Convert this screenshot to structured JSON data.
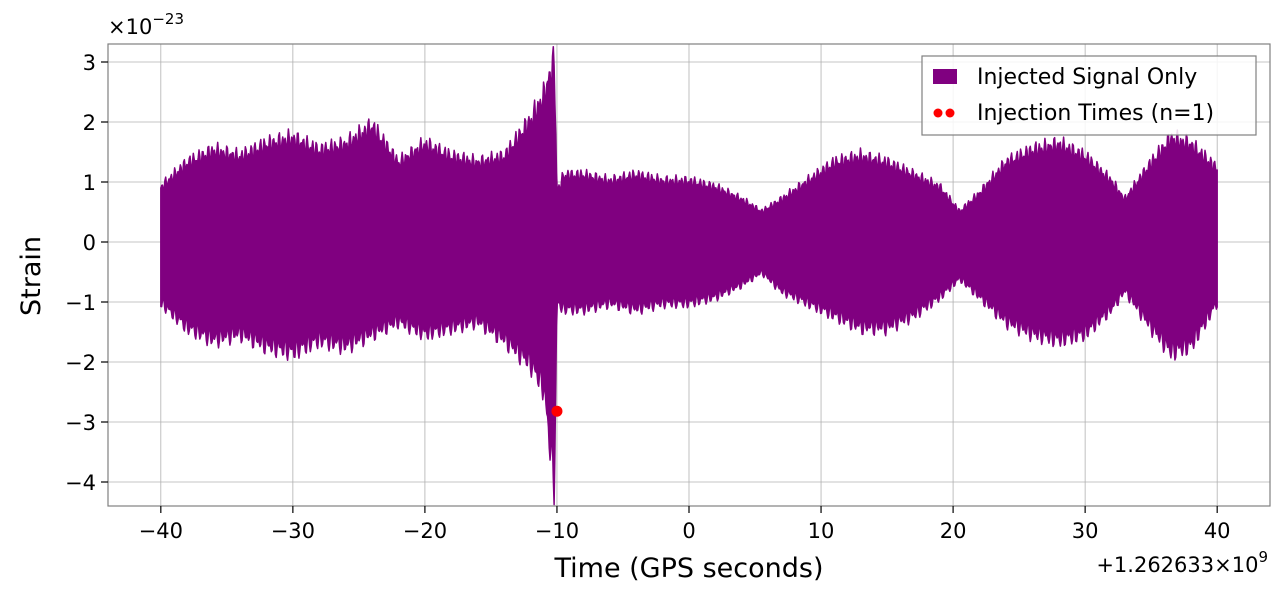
{
  "chart_data": {
    "type": "line",
    "xlabel": "Time (GPS seconds)",
    "ylabel": "Strain",
    "x_offset_text": "+1.262633×10",
    "x_offset_exp": "9",
    "y_scale_text": "×10",
    "y_scale_exp": "−23",
    "xlim": [
      -44,
      44
    ],
    "ylim": [
      -4.4,
      3.3
    ],
    "x_ticks": [
      -40,
      -30,
      -20,
      -10,
      0,
      10,
      20,
      30,
      40
    ],
    "x_tick_labels": [
      "−40",
      "−30",
      "−20",
      "−10",
      "0",
      "10",
      "20",
      "30",
      "40"
    ],
    "y_ticks": [
      -4,
      -3,
      -2,
      -1,
      0,
      1,
      2,
      3
    ],
    "y_tick_labels": [
      "−4",
      "−3",
      "−2",
      "−1",
      "0",
      "1",
      "2",
      "3"
    ],
    "grid": true,
    "legend_position": "top-right",
    "series": [
      {
        "name": "Injected Signal Only",
        "style": "filled-envelope",
        "color": "#800080",
        "x": [
          -40,
          -38,
          -36,
          -34,
          -32,
          -30,
          -28,
          -26,
          -24,
          -22,
          -20,
          -18,
          -16,
          -14,
          -13,
          -12,
          -11,
          -10.2,
          -10,
          -9.5,
          -8,
          -6,
          -4,
          -2,
          0,
          2,
          4,
          5.5,
          7,
          9,
          11,
          13,
          15,
          17,
          19,
          20.5,
          22,
          24,
          26,
          28,
          30,
          32,
          33,
          35,
          36.5,
          38,
          40
        ],
        "upper": [
          0.9,
          1.3,
          1.5,
          1.4,
          1.6,
          1.7,
          1.5,
          1.6,
          1.9,
          1.3,
          1.6,
          1.4,
          1.3,
          1.4,
          1.7,
          2.0,
          2.4,
          3.0,
          0.8,
          1.1,
          1.1,
          1.0,
          1.1,
          1.0,
          1.0,
          0.9,
          0.7,
          0.5,
          0.7,
          1.0,
          1.3,
          1.4,
          1.3,
          1.1,
          0.9,
          0.5,
          0.8,
          1.3,
          1.5,
          1.6,
          1.4,
          1.0,
          0.7,
          1.3,
          1.7,
          1.6,
          1.2
        ],
        "lower": [
          -1.0,
          -1.4,
          -1.6,
          -1.5,
          -1.7,
          -1.8,
          -1.6,
          -1.7,
          -1.5,
          -1.3,
          -1.5,
          -1.4,
          -1.3,
          -1.6,
          -1.8,
          -2.0,
          -2.4,
          -4.0,
          -1.0,
          -1.1,
          -1.1,
          -1.0,
          -1.1,
          -1.0,
          -1.0,
          -0.9,
          -0.7,
          -0.5,
          -0.8,
          -1.0,
          -1.2,
          -1.4,
          -1.4,
          -1.2,
          -0.9,
          -0.6,
          -0.9,
          -1.3,
          -1.5,
          -1.6,
          -1.5,
          -1.1,
          -0.8,
          -1.4,
          -1.8,
          -1.7,
          -1.0
        ]
      },
      {
        "name": "Injection Times (n=1)",
        "style": "scatter",
        "color": "#ff0000",
        "x": [
          -10
        ],
        "y": [
          -2.82
        ]
      }
    ]
  }
}
